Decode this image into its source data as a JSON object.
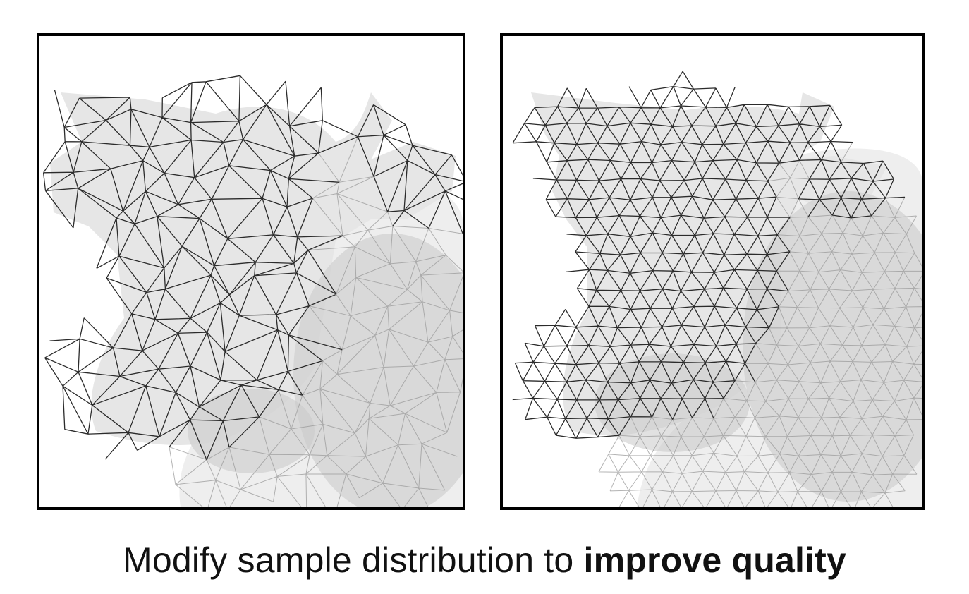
{
  "caption": {
    "text_regular": "Modify sample distribution to ",
    "text_bold": "improve quality"
  },
  "panels": [
    {
      "mesh": "coarse-irregular-triangulation"
    },
    {
      "mesh": "uniform-isotropic-triangulation"
    }
  ],
  "colors": {
    "border": "#000000",
    "edge": "#2b2b2b",
    "faint_edge": "#9a9a9a",
    "surface": "#e6e6e6",
    "shade": "#c9c9c9"
  }
}
